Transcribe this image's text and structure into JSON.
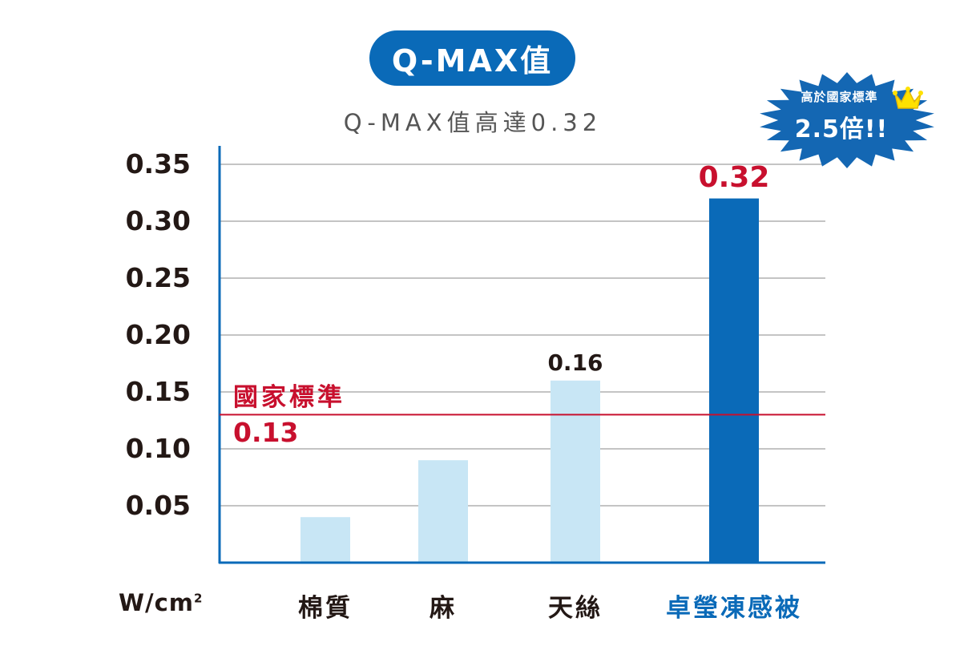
{
  "header": {
    "pill_title": "Q-MAX值",
    "subtitle": "Q-MAX值高達0.32"
  },
  "badge": {
    "line1": "高於國家標準",
    "line2": "2.5倍!!",
    "icon": "crown-icon",
    "color": "#1467b3"
  },
  "colors": {
    "accent": "#0a6ab8",
    "bar_light": "#c8e6f5",
    "bar_highlight": "#0a6ab8",
    "standard_line": "#c8102e",
    "grid": "#8a8a8a"
  },
  "chart_data": {
    "type": "bar",
    "title": "Q-MAX值",
    "subtitle": "Q-MAX值高達0.32",
    "ylabel": "W/cm²",
    "ylim": [
      0,
      0.35
    ],
    "yticks": [
      "0.05",
      "0.10",
      "0.15",
      "0.20",
      "0.25",
      "0.30",
      "0.35"
    ],
    "categories": [
      "棉質",
      "麻",
      "天絲",
      "卓瑩凍感被"
    ],
    "values": [
      0.04,
      0.09,
      0.16,
      0.32
    ],
    "value_labels": [
      "",
      "",
      "0.16",
      "0.32"
    ],
    "highlight_index": 3,
    "reference_line": {
      "name": "國家標準",
      "value": 0.13,
      "label": "0.13"
    },
    "grid": true
  }
}
